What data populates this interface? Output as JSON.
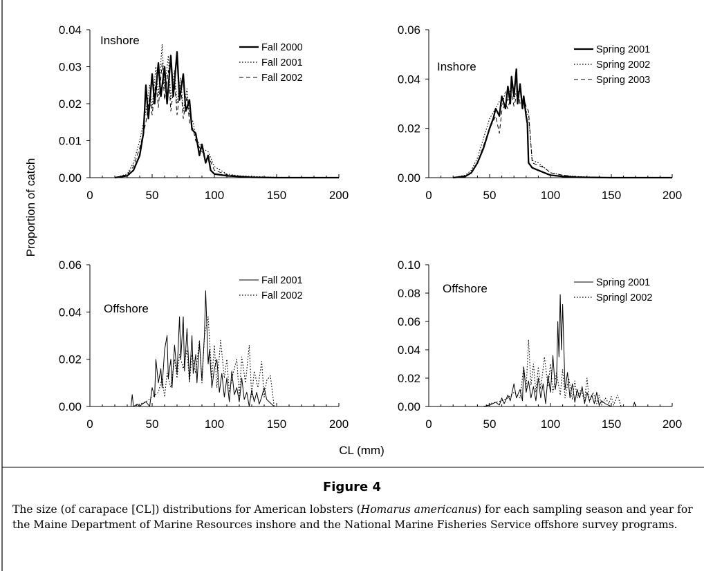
{
  "figure_title": "Figure 4",
  "caption": {
    "pre": "The size (of carapace [CL]) distributions for American lobsters (",
    "species": "Homarus americanus",
    "post": ") for each sampling season and year for the Maine Department of Marine Resources inshore and the National Marine Fisheries Service offshore survey programs."
  },
  "shared_ylabel": "Proportion of catch",
  "shared_xlabel": "CL (mm)",
  "chart_data": [
    {
      "type": "line",
      "panel_label": "Inshore",
      "xlim": [
        0,
        200
      ],
      "ylim": [
        0,
        0.04
      ],
      "xticks": [
        "0",
        "50",
        "100",
        "150",
        "200"
      ],
      "yticks": [
        "0.00",
        "0.01",
        "0.02",
        "0.03",
        "0.04"
      ],
      "grid": false,
      "legend": "top-right",
      "series": [
        {
          "name": "Fall 2000",
          "style": "solid-thick",
          "x": [
            20,
            30,
            35,
            40,
            43,
            45,
            47,
            50,
            52,
            55,
            57,
            60,
            62,
            65,
            67,
            70,
            72,
            75,
            77,
            80,
            82,
            85,
            88,
            90,
            93,
            95,
            97,
            100,
            110,
            120,
            130,
            150,
            170,
            200
          ],
          "y": [
            0,
            0.0005,
            0.002,
            0.006,
            0.012,
            0.025,
            0.016,
            0.028,
            0.02,
            0.031,
            0.022,
            0.03,
            0.02,
            0.033,
            0.022,
            0.034,
            0.021,
            0.028,
            0.018,
            0.021,
            0.013,
            0.012,
            0.006,
            0.009,
            0.004,
            0.006,
            0.002,
            0.001,
            0.0005,
            0.0003,
            0.0001,
            0,
            0,
            0
          ]
        },
        {
          "name": "Fall 2001",
          "style": "dotted",
          "x": [
            20,
            30,
            35,
            40,
            45,
            48,
            50,
            53,
            55,
            58,
            60,
            63,
            65,
            68,
            70,
            73,
            75,
            78,
            80,
            83,
            85,
            90,
            95,
            100,
            110,
            120,
            140,
            160,
            200
          ],
          "y": [
            0,
            0.001,
            0.004,
            0.01,
            0.018,
            0.025,
            0.019,
            0.03,
            0.022,
            0.036,
            0.024,
            0.033,
            0.021,
            0.029,
            0.02,
            0.027,
            0.018,
            0.024,
            0.017,
            0.015,
            0.011,
            0.008,
            0.007,
            0.003,
            0.001,
            0.0005,
            0.0002,
            0,
            0
          ]
        },
        {
          "name": "Fall 2002",
          "style": "dashed",
          "x": [
            20,
            30,
            35,
            40,
            45,
            48,
            50,
            53,
            55,
            58,
            60,
            63,
            65,
            68,
            70,
            73,
            75,
            78,
            80,
            83,
            85,
            90,
            95,
            100,
            110,
            120,
            140,
            160,
            200
          ],
          "y": [
            0,
            0.0008,
            0.003,
            0.008,
            0.015,
            0.022,
            0.017,
            0.026,
            0.019,
            0.031,
            0.021,
            0.029,
            0.018,
            0.026,
            0.017,
            0.025,
            0.016,
            0.022,
            0.015,
            0.013,
            0.01,
            0.007,
            0.006,
            0.002,
            0.0008,
            0.0004,
            0.0001,
            0,
            0
          ]
        }
      ]
    },
    {
      "type": "line",
      "panel_label": "Inshore",
      "xlim": [
        0,
        200
      ],
      "ylim": [
        0,
        0.06
      ],
      "xticks": [
        "0",
        "50",
        "100",
        "150",
        "200"
      ],
      "yticks": [
        "0.00",
        "0.02",
        "0.04",
        "0.06"
      ],
      "grid": false,
      "legend": "top-right",
      "series": [
        {
          "name": "Spring 2001",
          "style": "solid-thick",
          "x": [
            20,
            30,
            35,
            40,
            45,
            50,
            53,
            55,
            58,
            60,
            63,
            65,
            67,
            68,
            70,
            72,
            73,
            75,
            77,
            78,
            80,
            81,
            82,
            85,
            90,
            95,
            100,
            110,
            120,
            130,
            150,
            200
          ],
          "y": [
            0,
            0.0005,
            0.002,
            0.006,
            0.012,
            0.02,
            0.024,
            0.028,
            0.025,
            0.033,
            0.028,
            0.037,
            0.03,
            0.041,
            0.033,
            0.044,
            0.03,
            0.038,
            0.028,
            0.033,
            0.025,
            0.022,
            0.006,
            0.004,
            0.003,
            0.002,
            0.001,
            0.0005,
            0.0002,
            0.0001,
            0,
            0
          ]
        },
        {
          "name": "Spring 2002",
          "style": "dotted",
          "x": [
            20,
            30,
            35,
            40,
            45,
            50,
            55,
            58,
            60,
            63,
            65,
            68,
            70,
            73,
            75,
            78,
            80,
            82,
            85,
            90,
            95,
            100,
            110,
            120,
            150,
            200
          ],
          "y": [
            0,
            0.001,
            0.003,
            0.008,
            0.016,
            0.024,
            0.028,
            0.031,
            0.029,
            0.035,
            0.031,
            0.038,
            0.032,
            0.036,
            0.03,
            0.031,
            0.027,
            0.025,
            0.007,
            0.006,
            0.004,
            0.002,
            0.001,
            0.0005,
            0,
            0
          ]
        },
        {
          "name": "Spring 2003",
          "style": "dashed",
          "x": [
            20,
            30,
            35,
            40,
            45,
            50,
            55,
            58,
            60,
            63,
            65,
            68,
            70,
            73,
            75,
            78,
            80,
            82,
            85,
            90,
            95,
            100,
            110,
            120,
            150,
            200
          ],
          "y": [
            0,
            0.0008,
            0.002,
            0.006,
            0.013,
            0.02,
            0.025,
            0.018,
            0.027,
            0.03,
            0.028,
            0.034,
            0.029,
            0.035,
            0.03,
            0.032,
            0.029,
            0.027,
            0.006,
            0.005,
            0.004,
            0.002,
            0.001,
            0.0004,
            0,
            0
          ]
        }
      ]
    },
    {
      "type": "line",
      "panel_label": "Offshore",
      "xlim": [
        0,
        200
      ],
      "ylim": [
        0,
        0.06
      ],
      "xticks": [
        "0",
        "50",
        "100",
        "150",
        "200"
      ],
      "yticks": [
        "0.00",
        "0.02",
        "0.04",
        "0.06"
      ],
      "grid": false,
      "legend": "top-right",
      "series": [
        {
          "name": "Fall 2001",
          "style": "solid-thin",
          "x": [
            33,
            34,
            35,
            38,
            40,
            42,
            45,
            48,
            50,
            52,
            53,
            55,
            57,
            58,
            60,
            62,
            63,
            65,
            66,
            68,
            70,
            72,
            73,
            75,
            76,
            78,
            80,
            82,
            83,
            85,
            86,
            88,
            90,
            92,
            93,
            95,
            96,
            98,
            100,
            102,
            104,
            106,
            108,
            110,
            112,
            114,
            116,
            118,
            120,
            122,
            124,
            126,
            128,
            130,
            132,
            134,
            136,
            138,
            140,
            142,
            144,
            146,
            148
          ],
          "y": [
            0,
            0.005,
            0,
            0.001,
            0,
            0.001,
            0.002,
            0,
            0.008,
            0.004,
            0.02,
            0.01,
            0.016,
            0.008,
            0.024,
            0.03,
            0.012,
            0.02,
            0.008,
            0.026,
            0.014,
            0.038,
            0.02,
            0.038,
            0.015,
            0.033,
            0.011,
            0.03,
            0.014,
            0.022,
            0.01,
            0.027,
            0.011,
            0.03,
            0.049,
            0.018,
            0.024,
            0.008,
            0.016,
            0.02,
            0.006,
            0.014,
            0.004,
            0.012,
            0.002,
            0.015,
            0.005,
            0.008,
            0.002,
            0.012,
            0.003,
            0.006,
            0,
            0.007,
            0.002,
            0.006,
            0.001,
            0.004,
            0.008,
            0.003,
            0.002,
            0.001,
            0
          ]
        },
        {
          "name": "Fall 2002",
          "style": "dotted",
          "x": [
            35,
            40,
            45,
            50,
            55,
            58,
            60,
            62,
            65,
            68,
            70,
            72,
            75,
            78,
            80,
            82,
            85,
            88,
            90,
            92,
            95,
            98,
            100,
            102,
            105,
            108,
            110,
            112,
            115,
            118,
            120,
            122,
            125,
            128,
            130,
            132,
            135,
            138,
            140,
            142,
            145,
            148
          ],
          "y": [
            0,
            0.001,
            0.002,
            0.004,
            0.006,
            0.012,
            0.004,
            0.014,
            0.008,
            0.02,
            0.012,
            0.022,
            0.016,
            0.024,
            0.01,
            0.022,
            0.014,
            0.028,
            0.01,
            0.03,
            0.038,
            0.012,
            0.026,
            0.008,
            0.028,
            0.012,
            0.02,
            0.006,
            0.014,
            0.02,
            0.004,
            0.021,
            0.01,
            0.026,
            0.004,
            0.015,
            0.008,
            0.019,
            0.004,
            0.011,
            0.013,
            0
          ]
        }
      ]
    },
    {
      "type": "line",
      "panel_label": "Offshore",
      "xlim": [
        0,
        200
      ],
      "ylim": [
        0,
        0.1
      ],
      "xticks": [
        "0",
        "50",
        "100",
        "150",
        "200"
      ],
      "yticks": [
        "0.00",
        "0.02",
        "0.04",
        "0.06",
        "0.08",
        "0.10"
      ],
      "grid": false,
      "legend": "top-right",
      "series": [
        {
          "name": "Spring 2001",
          "style": "solid-thin",
          "x": [
            45,
            50,
            55,
            58,
            60,
            62,
            65,
            67,
            70,
            72,
            75,
            77,
            78,
            80,
            82,
            84,
            86,
            88,
            90,
            92,
            94,
            96,
            98,
            100,
            102,
            104,
            105,
            106,
            107,
            108,
            109,
            110,
            112,
            114,
            116,
            118,
            120,
            122,
            124,
            126,
            128,
            130,
            132,
            134,
            136,
            138,
            140,
            142,
            145,
            150,
            155,
            165,
            168,
            169,
            170
          ],
          "y": [
            0,
            0.001,
            0.003,
            0.001,
            0.006,
            0.002,
            0.008,
            0.004,
            0.016,
            0.006,
            0.012,
            0.004,
            0.028,
            0.01,
            0.018,
            0.006,
            0.014,
            0.004,
            0.02,
            0.006,
            0.016,
            0.002,
            0.022,
            0.01,
            0.036,
            0.012,
            0.018,
            0.06,
            0.035,
            0.079,
            0.04,
            0.072,
            0.012,
            0.024,
            0.006,
            0.016,
            0.003,
            0.012,
            0.006,
            0.014,
            0.002,
            0.01,
            0.004,
            0.008,
            0.002,
            0.01,
            0.001,
            0.004,
            0.002,
            0,
            0,
            0,
            0,
            0.003,
            0
          ]
        },
        {
          "name": "Springl 2002",
          "style": "dotted",
          "x": [
            45,
            50,
            55,
            60,
            65,
            70,
            75,
            78,
            80,
            82,
            84,
            86,
            88,
            90,
            92,
            95,
            98,
            100,
            102,
            105,
            108,
            110,
            112,
            115,
            118,
            120,
            122,
            125,
            128,
            130,
            132,
            135,
            138,
            140,
            142,
            145,
            148,
            150,
            152,
            155,
            158
          ],
          "y": [
            0,
            0.002,
            0.003,
            0.004,
            0.006,
            0.01,
            0.006,
            0.028,
            0.012,
            0.047,
            0.015,
            0.03,
            0.01,
            0.028,
            0.012,
            0.035,
            0.014,
            0.03,
            0.01,
            0.024,
            0.008,
            0.026,
            0.006,
            0.02,
            0.005,
            0.018,
            0.006,
            0.012,
            0.004,
            0.02,
            0.003,
            0.01,
            0.002,
            0.008,
            0.001,
            0.006,
            0.002,
            0.007,
            0.001,
            0.008,
            0
          ]
        }
      ]
    }
  ]
}
